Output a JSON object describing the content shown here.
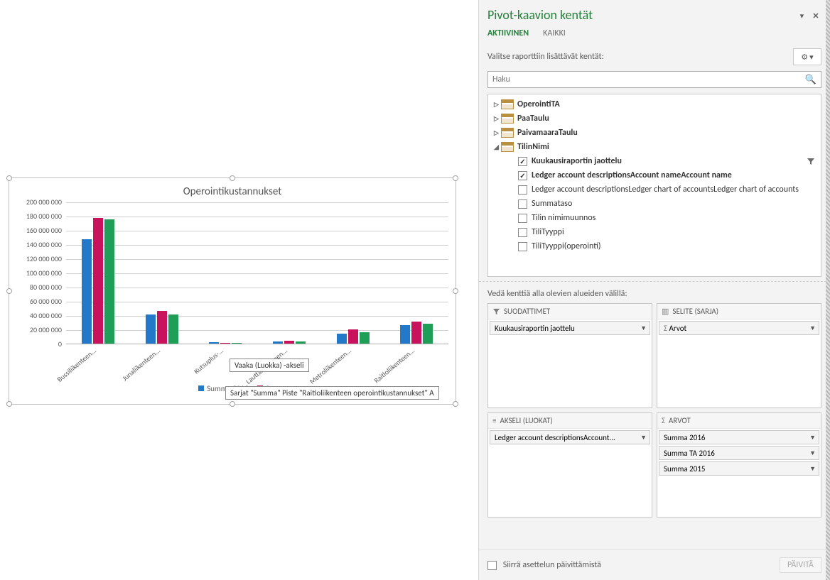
{
  "pane": {
    "title": "Pivot-kaavion kentät",
    "tab_active": "AKTIIVINEN",
    "tab_all": "KAIKKI",
    "instruction": "Valitse raporttiin lisättävät kentät:",
    "search_placeholder": "Haku",
    "drag_hint": "Vedä kenttiä alla olevien alueiden välillä:",
    "zone_filters": "SUODATTIMET",
    "zone_legend": "SELITE (SARJA)",
    "zone_axis": "AKSELI (LUOKAT)",
    "zone_values": "ARVOT",
    "defer": "Siirrä asettelun päivittämistä",
    "update": "PÄIVITÄ"
  },
  "tables": {
    "t0": "OperointiTA",
    "t1": "PaaTaulu",
    "t2": "PaivamaaraTaulu",
    "t3": "TilinNimi"
  },
  "fields": {
    "f0": "Kuukausiraportin jaottelu",
    "f1": "Ledger account descriptionsAccount nameAccount name",
    "f2": "Ledger account descriptionsLedger chart of accountsLedger chart of accounts",
    "f3": "Summataso",
    "f4": "Tilin nimimuunnos",
    "f5": "TiliTyyppi",
    "f6": "TiliTyyppi(operointi)"
  },
  "chips": {
    "filter0": "Kuukausiraportin jaottelu",
    "legend0": "Arvot",
    "axis0": "Ledger account descriptionsAccount...",
    "val0": "Summa 2016",
    "val1": "Summa TA 2016",
    "val2": "Summa 2015"
  },
  "chart": {
    "title": "Operointikustannukset",
    "ylabels": [
      "0",
      "20 000 000",
      "40 000 000",
      "60 000 000",
      "80 000 000",
      "100 000 000",
      "120 000 000",
      "140 000 000",
      "160 000 000",
      "180 000 000",
      "200 000 000"
    ],
    "ymax": 200000000,
    "series_colors": [
      "#2378c8",
      "#c8125c",
      "#1e9e57"
    ],
    "categories": [
      "Bussiliikenteen...",
      "Junaliikenteen...",
      "Kutsuplus-...",
      "Lauttaliikenteen...",
      "Metroliikenteen...",
      "Raitioliikenteen..."
    ],
    "values": [
      [
        148000000,
        178000000,
        176000000
      ],
      [
        42000000,
        47000000,
        42000000
      ],
      [
        3000000,
        2000000,
        2000000
      ],
      [
        4000000,
        5000000,
        4000000
      ],
      [
        15000000,
        21000000,
        17000000
      ],
      [
        27000000,
        32000000,
        29000000
      ]
    ],
    "legend": [
      "Summa 2016",
      "Su"
    ],
    "tooltip1": "Vaaka (Luokka)  -akseli",
    "tooltip2": "Sarjat \"Summa\" Piste \"Raitioliikenteen operointikustannukset\" A"
  }
}
